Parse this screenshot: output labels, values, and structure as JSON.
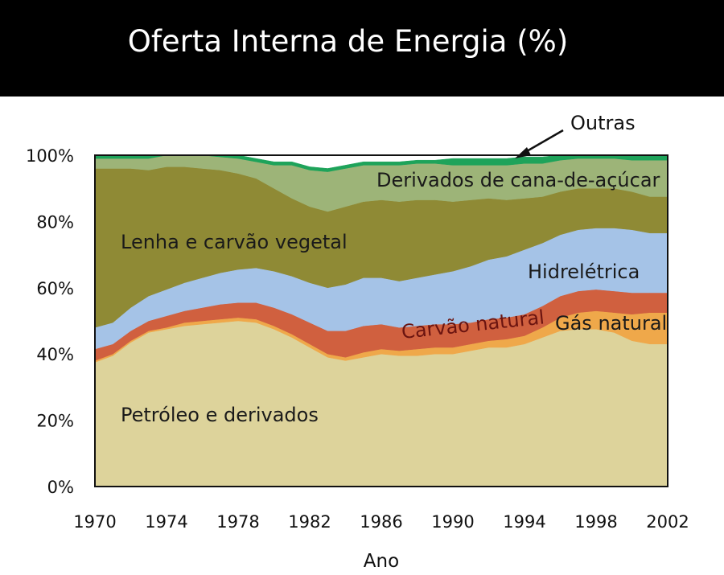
{
  "title": "Oferta Interna de Energia (%)",
  "chart_data": {
    "type": "area",
    "stacked": true,
    "title": "Oferta Interna de Energia (%)",
    "xlabel": "Ano",
    "ylabel": "",
    "xlim": [
      1970,
      2002
    ],
    "ylim": [
      0,
      100
    ],
    "x_ticks": [
      "1970",
      "1974",
      "1978",
      "1982",
      "1986",
      "1990",
      "1994",
      "1998",
      "2002"
    ],
    "y_ticks": [
      "0%",
      "20%",
      "40%",
      "60%",
      "80%",
      "100%"
    ],
    "x": [
      1970,
      1971,
      1972,
      1973,
      1974,
      1975,
      1976,
      1977,
      1978,
      1979,
      1980,
      1981,
      1982,
      1983,
      1984,
      1985,
      1986,
      1987,
      1988,
      1989,
      1990,
      1991,
      1992,
      1993,
      1994,
      1995,
      1996,
      1997,
      1998,
      1999,
      2000,
      2001
    ],
    "series": [
      {
        "name": "Petróleo e derivados",
        "color": "#ddd39b",
        "values": [
          37.5,
          39.5,
          43.5,
          46.5,
          47.5,
          48.5,
          49,
          49.5,
          50,
          49.5,
          47.5,
          45,
          42,
          39,
          38,
          39,
          40,
          39.5,
          39.5,
          40,
          40,
          41,
          42,
          42,
          43,
          45,
          47,
          47.5,
          47.5,
          46.5,
          44,
          43
        ]
      },
      {
        "name": "Gás natural",
        "color": "#efa84a",
        "values": [
          0.5,
          0.5,
          0.5,
          0.5,
          0.5,
          1,
          1,
          1,
          1,
          1,
          1,
          1,
          1,
          1,
          1,
          1.5,
          1.5,
          1.5,
          2,
          2,
          2,
          2,
          2,
          2.5,
          2.5,
          3,
          4,
          5,
          5.5,
          6,
          8,
          9.5
        ]
      },
      {
        "name": "Carvão natural",
        "color": "#d0603f",
        "values": [
          3.5,
          3,
          3,
          3,
          3.5,
          3.5,
          4,
          4.5,
          4.5,
          5,
          5.5,
          6,
          6.5,
          7,
          8,
          8,
          7.5,
          7,
          7,
          7,
          7,
          6.5,
          6.5,
          6.5,
          6.5,
          6.5,
          6.5,
          6.5,
          6.5,
          6.5,
          6.5,
          6
        ]
      },
      {
        "name": "Hidrelétrica",
        "color": "#a5c3e7",
        "values": [
          6.5,
          6.5,
          7,
          7.5,
          8,
          8.5,
          9,
          9.5,
          10,
          10.5,
          11,
          11.5,
          12,
          13,
          14,
          14.5,
          14,
          14,
          14.5,
          15,
          16,
          17,
          18,
          18.5,
          19.5,
          19,
          18.5,
          18.5,
          18.5,
          19,
          19,
          18
        ]
      },
      {
        "name": "Lenha e carvão vegetal",
        "color": "#8f8a35",
        "values": [
          48,
          46.5,
          42,
          38,
          37,
          35,
          33,
          31,
          29,
          27,
          25,
          23.5,
          23,
          23,
          23.5,
          23,
          23.5,
          24,
          23.5,
          22.5,
          21,
          20,
          18.5,
          17,
          15.5,
          14,
          13,
          12.5,
          12,
          12,
          11.5,
          11
        ]
      },
      {
        "name": "Derivados de cana-de-açúcar",
        "color": "#9db478",
        "values": [
          3,
          3,
          3,
          3.5,
          3.5,
          3.5,
          4,
          4,
          4.5,
          5,
          7,
          10,
          11,
          12,
          11.5,
          11,
          10.5,
          11,
          11,
          11,
          11,
          10.5,
          10,
          10.5,
          10.5,
          10,
          9.5,
          9,
          9,
          9,
          9.5,
          11
        ]
      },
      {
        "name": "Outras",
        "color": "#1ea35a",
        "values": [
          1,
          1,
          1,
          1,
          1,
          1,
          1,
          1,
          1,
          1,
          1,
          1,
          1,
          1,
          1,
          1,
          1,
          1,
          1,
          1,
          2,
          2,
          2,
          2,
          2,
          2,
          2,
          2,
          2,
          2,
          2,
          2
        ]
      }
    ],
    "labels": [
      {
        "text": "Outras",
        "color": "#111111"
      },
      {
        "text": "Derivados de cana-de-açúcar",
        "color": "#1a1a1a"
      },
      {
        "text": "Lenha e carvão vegetal",
        "color": "#1a1a1a"
      },
      {
        "text": "Hidrelétrica",
        "color": "#1a1a1a"
      },
      {
        "text": "Carvão natural",
        "color": "#6b1410"
      },
      {
        "text": "Gás natural",
        "color": "#1a1a1a"
      },
      {
        "text": "Petróleo e derivados",
        "color": "#1a1a1a"
      }
    ]
  }
}
